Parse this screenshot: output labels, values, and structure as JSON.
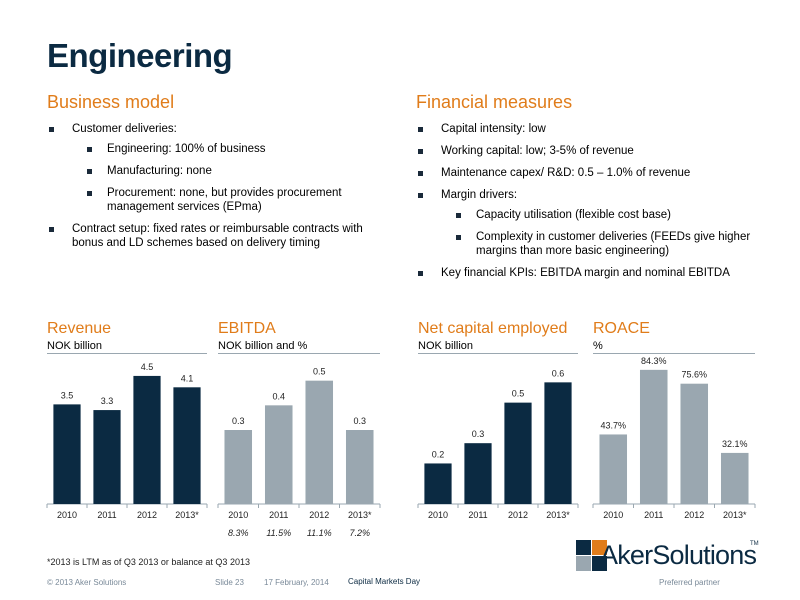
{
  "title": "Engineering",
  "business_model": {
    "heading": "Business model",
    "items": [
      {
        "text": "Customer deliveries:",
        "sub": [
          "Engineering: 100% of business",
          "Manufacturing: none",
          "Procurement: none, but provides procurement management services (EPma)"
        ]
      },
      {
        "text": "Contract setup: fixed rates or reimbursable contracts with bonus and LD schemes based on delivery timing",
        "sub": []
      }
    ]
  },
  "financial_measures": {
    "heading": "Financial measures",
    "items": [
      {
        "text": "Capital intensity: low",
        "sub": []
      },
      {
        "text": "Working capital: low; 3-5% of revenue",
        "sub": []
      },
      {
        "text": "Maintenance capex/ R&D: 0.5 – 1.0% of revenue",
        "sub": []
      },
      {
        "text": "Margin drivers:",
        "sub": [
          "Capacity utilisation (flexible cost base)",
          "Complexity in customer deliveries (FEEDs give higher margins than more basic engineering)"
        ]
      },
      {
        "text": "Key financial KPIs: EBITDA margin and nominal EBITDA",
        "sub": []
      }
    ]
  },
  "chart_data": [
    {
      "type": "bar",
      "title": "Revenue",
      "subtitle": "NOK billion",
      "categories": [
        "2010",
        "2011",
        "2012",
        "2013*"
      ],
      "values": [
        3.5,
        3.3,
        4.5,
        4.1
      ],
      "labels": [
        "3.5",
        "3.3",
        "4.5",
        "4.1"
      ],
      "ylim": [
        0,
        5.2
      ],
      "highlight_index": 2,
      "colors": [
        "#0b2a42",
        "#0b2a42",
        "#0b2a42",
        "#0b2a42"
      ]
    },
    {
      "type": "bar",
      "title": "EBITDA",
      "subtitle": "NOK billion and %",
      "categories": [
        "2010",
        "2011",
        "2012",
        "2013*"
      ],
      "values": [
        0.3,
        0.4,
        0.5,
        0.3
      ],
      "labels": [
        "0.3",
        "0.4",
        "0.5",
        "0.3"
      ],
      "below_labels": [
        "8.3%",
        "11.5%",
        "11.1%",
        "7.2%"
      ],
      "ylim": [
        0,
        0.6
      ],
      "colors": [
        "#9aa7b0",
        "#9aa7b0",
        "#9aa7b0",
        "#9aa7b0"
      ]
    },
    {
      "type": "bar",
      "title": "Net capital employed",
      "subtitle": "NOK billion",
      "categories": [
        "2010",
        "2011",
        "2012",
        "2013*"
      ],
      "values": [
        0.2,
        0.3,
        0.5,
        0.6
      ],
      "labels": [
        "0.2",
        "0.3",
        "0.5",
        "0.6"
      ],
      "ylim": [
        0,
        0.73
      ],
      "colors": [
        "#0b2a42",
        "#0b2a42",
        "#0b2a42",
        "#0b2a42"
      ]
    },
    {
      "type": "bar",
      "title": "ROACE",
      "subtitle": "%",
      "categories": [
        "2010",
        "2011",
        "2012",
        "2013*"
      ],
      "values": [
        43.7,
        84.3,
        75.6,
        32.1
      ],
      "labels": [
        "43.7%",
        "84.3%",
        "75.6%",
        "32.1%"
      ],
      "ylim": [
        0,
        93
      ],
      "colors": [
        "#9aa7b0",
        "#9aa7b0",
        "#9aa7b0",
        "#9aa7b0"
      ]
    }
  ],
  "footnote": "*2013 is LTM as of Q3 2013 or balance at Q3 2013",
  "logo_text": "AkerSolutions",
  "logo_tm": "TM",
  "footer": {
    "copyright": "© 2013 Aker Solutions",
    "slide": "Slide 23",
    "date": "17 February, 2014",
    "event": "Capital Markets Day",
    "tagline": "Preferred partner"
  }
}
